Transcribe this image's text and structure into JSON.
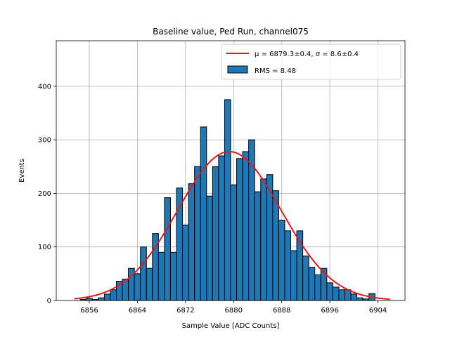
{
  "chart_data": {
    "type": "bar",
    "title": "Baseline value, Ped Run, channel075",
    "xlabel": "Sample Value [ADC Counts]",
    "ylabel": "Events",
    "xlim": [
      6850.5,
      6908.5
    ],
    "ylim": [
      0,
      485
    ],
    "xticks": [
      6856,
      6864,
      6872,
      6880,
      6888,
      6896,
      6904
    ],
    "yticks": [
      0,
      100,
      200,
      300,
      400
    ],
    "grid": true,
    "legend_position": "top-right",
    "bin_width": 1,
    "histogram": {
      "name": "RMS = 8.48",
      "color": "#1f77b4",
      "edge_color": "#000000",
      "bin_centers": [
        6854,
        6855,
        6856,
        6857,
        6858,
        6859,
        6860,
        6861,
        6862,
        6863,
        6864,
        6865,
        6866,
        6867,
        6868,
        6869,
        6870,
        6871,
        6872,
        6873,
        6874,
        6875,
        6876,
        6877,
        6878,
        6879,
        6880,
        6881,
        6882,
        6883,
        6884,
        6885,
        6886,
        6887,
        6888,
        6889,
        6890,
        6891,
        6892,
        6893,
        6894,
        6895,
        6896,
        6897,
        6898,
        6899,
        6900,
        6901,
        6902,
        6903,
        6904
      ],
      "counts": [
        0,
        2,
        4,
        2,
        5,
        12,
        20,
        36,
        40,
        60,
        50,
        100,
        60,
        125,
        90,
        192,
        90,
        210,
        141,
        218,
        250,
        324,
        195,
        250,
        270,
        375,
        216,
        265,
        278,
        300,
        203,
        227,
        235,
        205,
        150,
        130,
        93,
        130,
        83,
        62,
        48,
        60,
        33,
        25,
        20,
        20,
        12,
        5,
        3,
        13,
        0
      ]
    },
    "fit": {
      "name": "μ = 6879.3±0.4, σ = 8.6±0.4",
      "color": "#e31a1c",
      "mu": 6879.3,
      "sigma": 8.6,
      "amplitude": 278,
      "x_range": [
        6853.5,
        6906
      ]
    }
  }
}
